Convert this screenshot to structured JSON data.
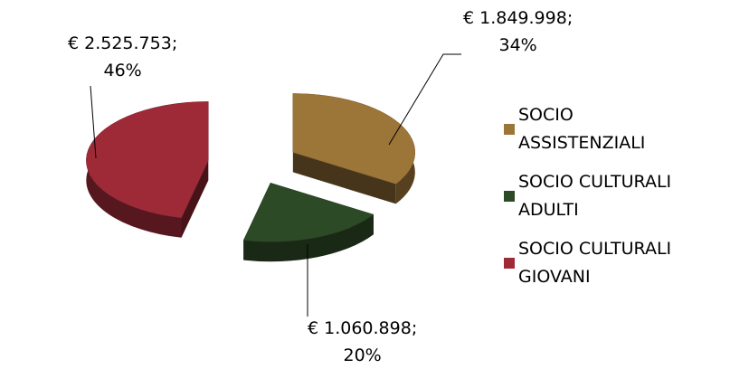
{
  "chart_data": {
    "type": "pie",
    "categories": [
      "SOCIO ASSISTENZIALI",
      "SOCIO CULTURALI ADULTI",
      "SOCIO CULTURALI GIOVANI"
    ],
    "values": [
      1849998,
      1060898,
      2525753
    ],
    "value_labels": [
      "€ 1.849.998;",
      "€ 1.060.898;",
      "€ 2.525.753;"
    ],
    "percents": [
      34,
      20,
      46
    ],
    "percent_labels": [
      "34%",
      "20%",
      "46%"
    ],
    "colors": [
      "#9c7539",
      "#2d4a26",
      "#9e2a38"
    ],
    "legend": "right"
  }
}
